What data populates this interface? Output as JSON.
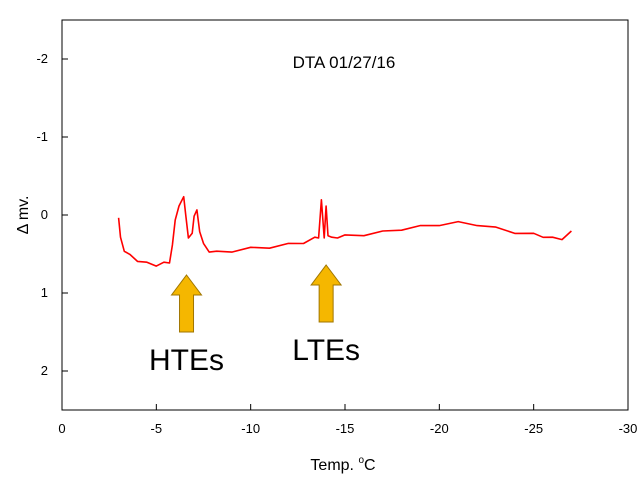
{
  "chart_data": {
    "type": "line",
    "title": "DTA 01/27/16",
    "xlabel": "Temp. °C",
    "xlabel_main": "Temp. ",
    "xlabel_sup": "o",
    "xlabel_unit": "C",
    "ylabel": "Δ mv.",
    "xlim": [
      0,
      -30
    ],
    "ylim": [
      -2.5,
      2.5
    ],
    "y_inverted": true,
    "x_reversed": true,
    "grid": false,
    "xticks": [
      0,
      -5,
      -10,
      -15,
      -20,
      -25,
      -30
    ],
    "yticks": [
      -2,
      -1,
      0,
      1,
      2
    ],
    "series_color": "#ff0000",
    "arrow_color": "#f5b700",
    "series": [
      {
        "x": [
          -3.0,
          -3.1,
          -3.3,
          -3.6,
          -4.0,
          -4.5,
          -5.0,
          -5.4,
          -5.7,
          -5.85,
          -6.0,
          -6.2,
          -6.45,
          -6.55,
          -6.7,
          -6.9,
          -7.0,
          -7.15,
          -7.3,
          -7.5,
          -7.8,
          -8.2,
          -9.0,
          -10.0,
          -11.0,
          -12.0,
          -12.8,
          -13.4,
          -13.6,
          -13.75,
          -13.9,
          -14.0,
          -14.1,
          -14.3,
          -14.6,
          -15.0,
          -16.0,
          -17.0,
          -18.0,
          -19.0,
          -20.0,
          -21.0,
          -22.0,
          -23.0,
          -24.0,
          -25.0,
          -25.5,
          -26.0,
          -26.5,
          -27.0
        ],
        "y": [
          0.02,
          0.3,
          0.45,
          0.52,
          0.58,
          0.62,
          0.64,
          0.62,
          0.6,
          0.4,
          0.05,
          -0.1,
          -0.25,
          0.0,
          0.28,
          0.25,
          0.0,
          -0.05,
          0.2,
          0.38,
          0.46,
          0.48,
          0.46,
          0.43,
          0.41,
          0.38,
          0.35,
          0.3,
          0.28,
          -0.18,
          0.28,
          -0.1,
          0.25,
          0.3,
          0.28,
          0.27,
          0.25,
          0.22,
          0.18,
          0.15,
          0.12,
          0.1,
          0.12,
          0.17,
          0.22,
          0.25,
          0.27,
          0.3,
          0.3,
          0.22
        ]
      }
    ],
    "annotations": [
      {
        "text": "HTEs",
        "x": -6.6
      },
      {
        "text": "LTEs",
        "x": -14.0
      }
    ]
  }
}
